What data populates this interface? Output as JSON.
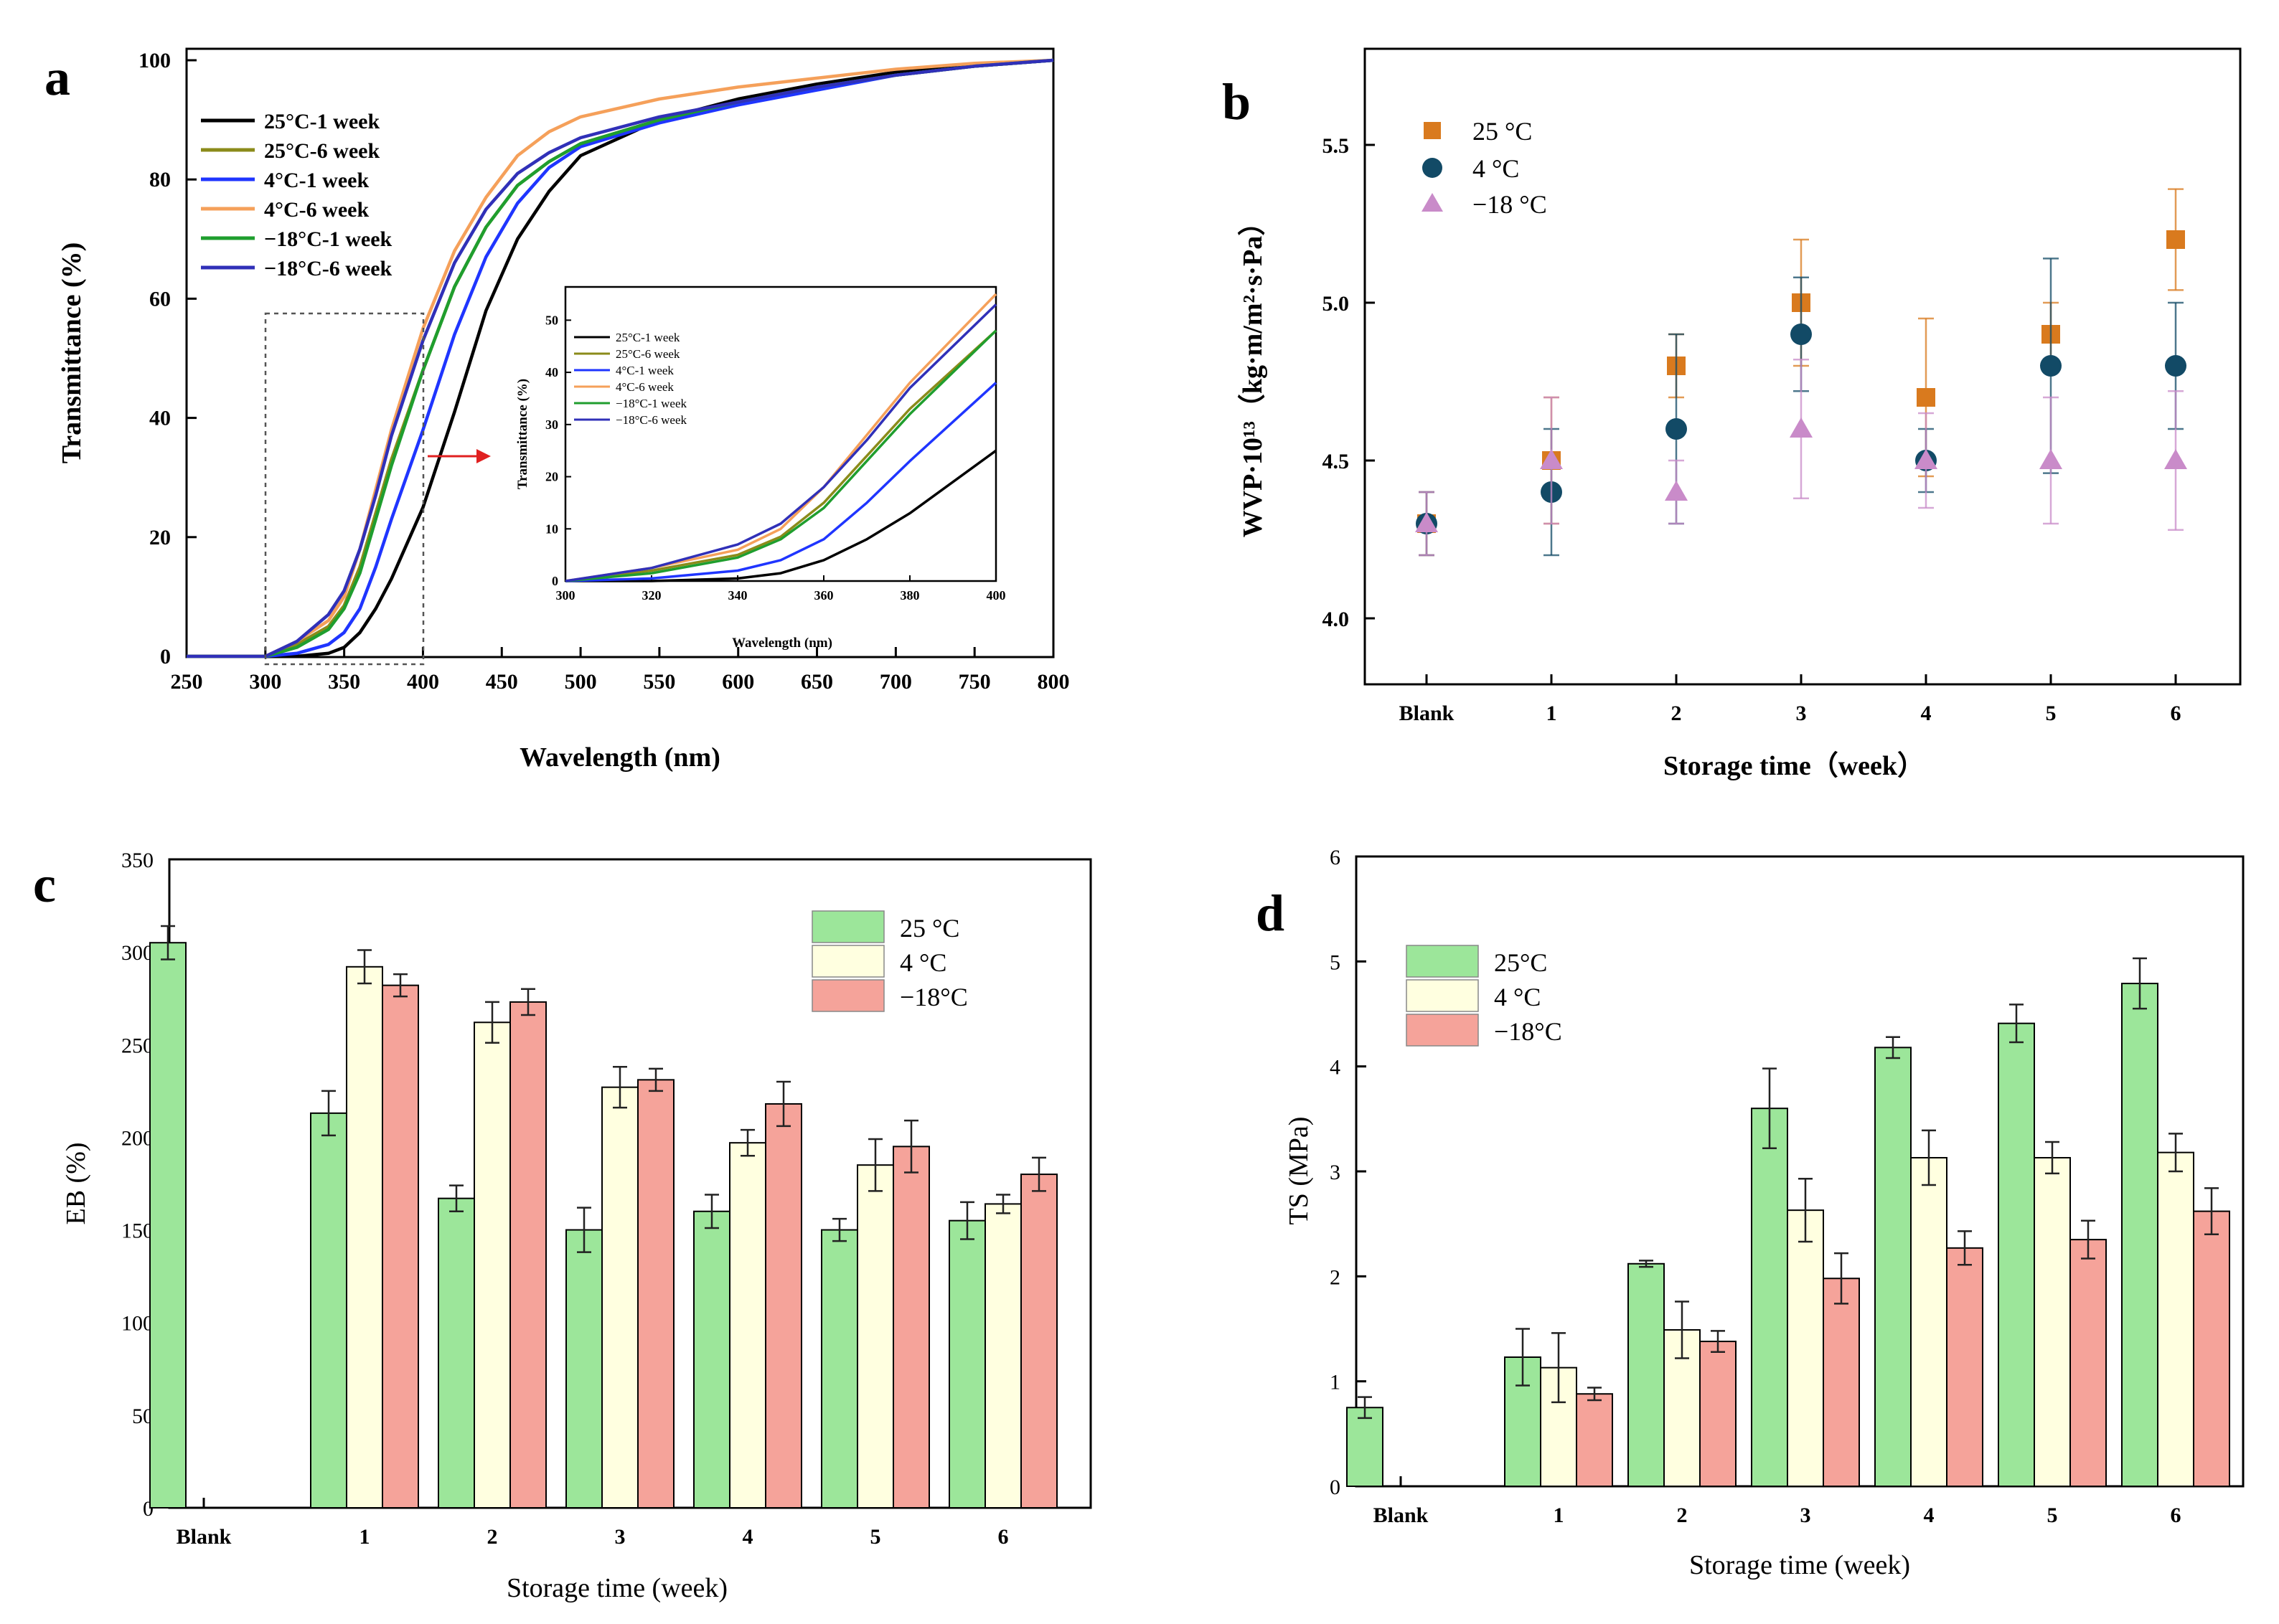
{
  "colors": {
    "c25_1": "#000000",
    "c25_6": "#8b8b1a",
    "c4_1": "#1f35ff",
    "c4_6": "#f5a05a",
    "cm18_1": "#1f9e2e",
    "cm18_6": "#3030b8",
    "wvp25": "#d97a1e",
    "wvp4": "#124a66",
    "wvpm18": "#c98bc9",
    "bar25": "#9ce69a",
    "bar4": "#ffffe0",
    "barm18": "#f5a39a",
    "arrow": "#e02020"
  },
  "chart_data": [
    {
      "panel": "a",
      "type": "line",
      "title": "",
      "xlabel": "Wavelength (nm)",
      "ylabel": "Transmittance (%)",
      "xlim": [
        250,
        800
      ],
      "ylim": [
        0,
        100
      ],
      "x_ticks": [
        250,
        300,
        350,
        400,
        450,
        500,
        550,
        600,
        650,
        700,
        750,
        800
      ],
      "y_ticks": [
        0,
        20,
        40,
        60,
        80,
        100
      ],
      "series": [
        {
          "name": "25°C-1 week",
          "color_key": "c25_1",
          "x": [
            250,
            300,
            320,
            340,
            350,
            360,
            370,
            380,
            400,
            420,
            440,
            460,
            480,
            500,
            550,
            600,
            650,
            700,
            750,
            800
          ],
          "y": [
            0,
            0,
            0,
            0.5,
            1.5,
            4,
            8,
            13,
            25,
            41,
            58,
            70,
            78,
            84,
            90,
            93.5,
            96,
            98,
            99,
            100
          ]
        },
        {
          "name": "25°C-6 week",
          "color_key": "c25_6",
          "x": [
            250,
            300,
            320,
            340,
            350,
            360,
            370,
            380,
            400,
            420,
            440,
            460,
            480,
            500,
            550,
            600,
            650,
            700,
            750,
            800
          ],
          "y": [
            0,
            0,
            2,
            5,
            8.5,
            15,
            24,
            33,
            48,
            62,
            72,
            79,
            83,
            86,
            90,
            93,
            95.5,
            97.5,
            99,
            100
          ]
        },
        {
          "name": "4°C-1 week",
          "color_key": "c4_1",
          "x": [
            250,
            300,
            320,
            340,
            350,
            360,
            370,
            380,
            400,
            420,
            440,
            460,
            480,
            500,
            550,
            600,
            650,
            700,
            750,
            800
          ],
          "y": [
            0,
            0,
            0.5,
            2,
            4,
            8,
            15,
            23,
            38,
            54,
            67,
            76,
            82,
            85.5,
            89.5,
            92.5,
            95,
            97.5,
            99,
            100
          ]
        },
        {
          "name": "4°C-6 week",
          "color_key": "c4_6",
          "x": [
            250,
            300,
            320,
            340,
            350,
            360,
            370,
            380,
            400,
            420,
            440,
            460,
            480,
            500,
            550,
            600,
            650,
            700,
            750,
            800
          ],
          "y": [
            0,
            0,
            2.5,
            6,
            10,
            18,
            28,
            38,
            55,
            68,
            77,
            84,
            88,
            90.5,
            93.5,
            95.5,
            97,
            98.5,
            99.5,
            100
          ]
        },
        {
          "name": "−18°C-1 week",
          "color_key": "cm18_1",
          "x": [
            250,
            300,
            320,
            340,
            350,
            360,
            370,
            380,
            400,
            420,
            440,
            460,
            480,
            500,
            550,
            600,
            650,
            700,
            750,
            800
          ],
          "y": [
            0,
            0,
            1.5,
            4.5,
            8,
            14,
            23,
            32,
            48,
            62,
            72,
            79,
            83,
            86,
            90,
            93,
            95.5,
            97.5,
            99,
            100
          ]
        },
        {
          "name": "−18°C-6 week",
          "color_key": "cm18_6",
          "x": [
            250,
            300,
            320,
            340,
            350,
            360,
            370,
            380,
            400,
            420,
            440,
            460,
            480,
            500,
            550,
            600,
            650,
            700,
            750,
            800
          ],
          "y": [
            0,
            0,
            2.5,
            7,
            11,
            18,
            27,
            37,
            53,
            66,
            75,
            81,
            84.5,
            87,
            90.5,
            93,
            95.5,
            97.5,
            99,
            100
          ]
        }
      ],
      "inset": {
        "xlabel": "Wavelength (nm)",
        "ylabel": "Transmittance (%)",
        "xlim": [
          300,
          400
        ],
        "ylim": [
          0,
          55
        ],
        "x_ticks": [
          300,
          320,
          340,
          360,
          380,
          400
        ],
        "y_ticks": [
          0,
          10,
          20,
          30,
          40,
          50
        ],
        "legend": [
          "25°C-1 week",
          "25°C-6 week",
          "4°C-1 week",
          "4°C-6 week",
          "−18°C-1 week",
          "−18°C-6 week"
        ]
      }
    },
    {
      "panel": "b",
      "type": "scatter",
      "xlabel": "Storage time（week）",
      "ylabel": "WVP·10¹³（kg·m/m²·s·Pa）",
      "ylim": [
        3.8,
        5.8
      ],
      "y_ticks": [
        "4.0",
        "4.5",
        "5.0",
        "5.5"
      ],
      "categories": [
        "Blank",
        "1",
        "2",
        "3",
        "4",
        "5",
        "6"
      ],
      "series": [
        {
          "name": "25 °C",
          "color_key": "wvp25",
          "marker": "square",
          "values": [
            4.3,
            4.5,
            4.8,
            5.0,
            4.7,
            4.9,
            5.2
          ],
          "errors": [
            0.1,
            0.2,
            0.1,
            0.2,
            0.25,
            0.1,
            0.16
          ]
        },
        {
          "name": "4 °C",
          "color_key": "wvp4",
          "marker": "circle",
          "values": [
            4.3,
            4.4,
            4.6,
            4.9,
            4.5,
            4.8,
            4.8
          ],
          "errors": [
            0.1,
            0.2,
            0.3,
            0.18,
            0.1,
            0.34,
            0.2
          ]
        },
        {
          "name": "−18 °C",
          "color_key": "wvpm18",
          "marker": "triangle",
          "values": [
            4.3,
            4.5,
            4.4,
            4.6,
            4.5,
            4.5,
            4.5
          ],
          "errors": [
            0.1,
            0.2,
            0.1,
            0.22,
            0.15,
            0.2,
            0.22
          ]
        }
      ]
    },
    {
      "panel": "c",
      "type": "bar",
      "xlabel": "Storage time (week)",
      "ylabel": "EB (%)",
      "ylim": [
        0,
        350
      ],
      "y_ticks": [
        0,
        50,
        100,
        150,
        200,
        250,
        300,
        350
      ],
      "categories": [
        "Blank",
        "1",
        "2",
        "3",
        "4",
        "5",
        "6"
      ],
      "series": [
        {
          "name": "25 °C",
          "color_key": "bar25",
          "values": [
            305,
            213,
            167,
            150,
            160,
            150,
            155
          ],
          "errors": [
            9,
            12,
            7,
            12,
            9,
            6,
            10
          ]
        },
        {
          "name": "4 °C",
          "color_key": "bar4",
          "values": [
            null,
            292,
            262,
            227,
            197,
            185,
            164
          ],
          "errors": [
            0,
            9,
            11,
            11,
            7,
            14,
            5
          ]
        },
        {
          "name": "−18°C",
          "color_key": "barm18",
          "values": [
            null,
            282,
            273,
            231,
            218,
            195,
            180
          ],
          "errors": [
            0,
            6,
            7,
            6,
            12,
            14,
            9
          ]
        }
      ]
    },
    {
      "panel": "d",
      "type": "bar",
      "xlabel": "Storage time (week)",
      "ylabel": "TS (MPa)",
      "ylim": [
        0,
        6
      ],
      "y_ticks": [
        0,
        1,
        2,
        3,
        4,
        5,
        6
      ],
      "categories": [
        "Blank",
        "1",
        "2",
        "3",
        "4",
        "5",
        "6"
      ],
      "series": [
        {
          "name": "25°C",
          "color_key": "bar25",
          "values": [
            0.75,
            1.23,
            2.12,
            3.6,
            4.18,
            4.41,
            4.79
          ],
          "errors": [
            0.1,
            0.27,
            0.03,
            0.38,
            0.1,
            0.18,
            0.24
          ]
        },
        {
          "name": "4 °C",
          "color_key": "bar4",
          "values": [
            null,
            1.13,
            1.49,
            2.63,
            3.13,
            3.13,
            3.18
          ],
          "errors": [
            0,
            0.33,
            0.27,
            0.3,
            0.26,
            0.15,
            0.18
          ]
        },
        {
          "name": "−18°C",
          "color_key": "barm18",
          "values": [
            null,
            0.88,
            1.38,
            1.98,
            2.27,
            2.35,
            2.62
          ],
          "errors": [
            0,
            0.06,
            0.1,
            0.24,
            0.16,
            0.18,
            0.22
          ]
        }
      ]
    }
  ],
  "panels": {
    "a": "a",
    "b": "b",
    "c": "c",
    "d": "d"
  }
}
